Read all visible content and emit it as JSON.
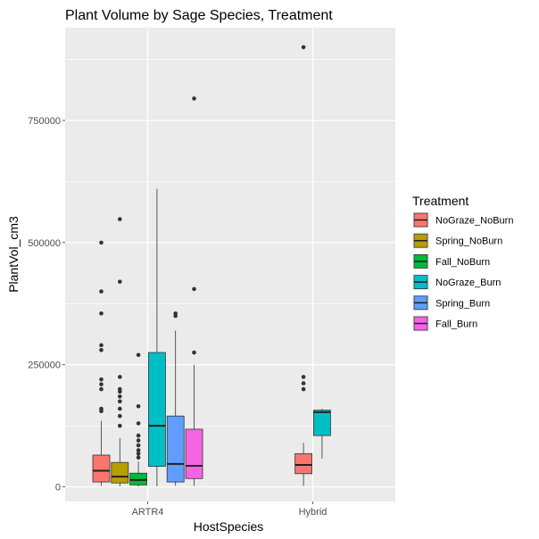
{
  "chart_data": {
    "type": "box",
    "title": "Plant Volume by Sage Species, Treatment",
    "xlabel": "HostSpecies",
    "ylabel": "PlantVol_cm3",
    "categories": [
      "ARTR4",
      "Hybrid"
    ],
    "ylim": [
      -30000,
      940000
    ],
    "yticks": [
      0,
      250000,
      500000,
      750000
    ],
    "ytick_labels": [
      "0",
      "250000",
      "500000",
      "750000"
    ],
    "grid": true,
    "legend": {
      "title": "Treatment",
      "position": "right",
      "entries": [
        "NoGraze_NoBurn",
        "Spring_NoBurn",
        "Fall_NoBurn",
        "NoGraze_Burn",
        "Spring_Burn",
        "Fall_Burn"
      ]
    },
    "colors": {
      "NoGraze_NoBurn": "#F8766D",
      "Spring_NoBurn": "#B79F00",
      "Fall_NoBurn": "#00BA38",
      "NoGraze_Burn": "#00BFC4",
      "Spring_Burn": "#619CFF",
      "Fall_Burn": "#F564E3"
    },
    "boxes": [
      {
        "category": "ARTR4",
        "series": "NoGraze_NoBurn",
        "min": 2000,
        "q1": 10000,
        "median": 33000,
        "q3": 65000,
        "max": 135000,
        "outliers": [
          155000,
          160000,
          200000,
          210000,
          220000,
          280000,
          290000,
          355000,
          400000,
          500000
        ]
      },
      {
        "category": "ARTR4",
        "series": "Spring_NoBurn",
        "min": 1000,
        "q1": 8000,
        "median": 21000,
        "q3": 50000,
        "max": 100000,
        "outliers": [
          125000,
          145000,
          160000,
          175000,
          185000,
          195000,
          200000,
          225000,
          420000,
          548000
        ]
      },
      {
        "category": "ARTR4",
        "series": "Fall_NoBurn",
        "min": 500,
        "q1": 4000,
        "median": 14000,
        "q3": 28000,
        "max": 52000,
        "outliers": [
          60000,
          68000,
          75000,
          85000,
          95000,
          105000,
          130000,
          165000,
          270000
        ]
      },
      {
        "category": "ARTR4",
        "series": "NoGraze_Burn",
        "min": 1000,
        "q1": 42000,
        "median": 125000,
        "q3": 275000,
        "max": 610000,
        "outliers": []
      },
      {
        "category": "ARTR4",
        "series": "Spring_Burn",
        "min": 2000,
        "q1": 10000,
        "median": 47000,
        "q3": 145000,
        "max": 320000,
        "outliers": [
          350000,
          355000
        ]
      },
      {
        "category": "ARTR4",
        "series": "Fall_Burn",
        "min": 2000,
        "q1": 17000,
        "median": 43000,
        "q3": 118000,
        "max": 250000,
        "outliers": [
          275000,
          405000,
          795000
        ]
      },
      {
        "category": "Hybrid",
        "series": "NoGraze_NoBurn",
        "min": 2000,
        "q1": 27000,
        "median": 45000,
        "q3": 68000,
        "max": 90000,
        "outliers": [
          200000,
          212000,
          225000,
          900000
        ]
      },
      {
        "category": "Hybrid",
        "series": "NoGraze_Burn",
        "min": 58000,
        "q1": 105000,
        "median": 153000,
        "q3": 157000,
        "max": 160000,
        "outliers": []
      }
    ]
  }
}
